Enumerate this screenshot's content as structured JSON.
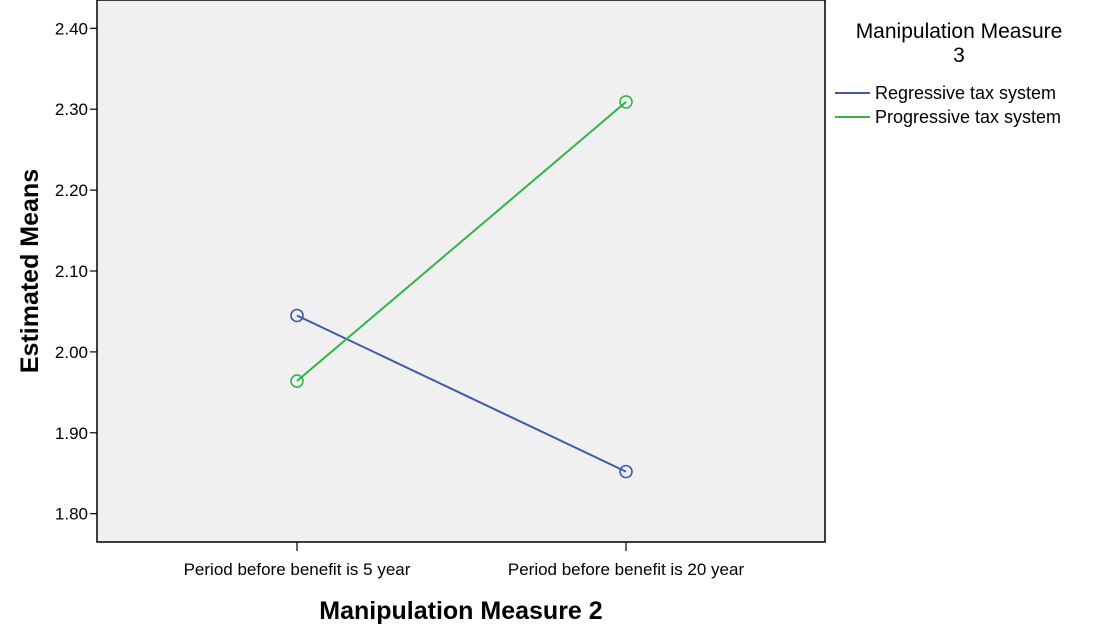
{
  "chart_data": {
    "type": "line",
    "xlabel": "Manipulation Measure 2",
    "ylabel": "Estimated Means",
    "categories": [
      "Period before benefit is 5 year",
      "Period before benefit is 20 year"
    ],
    "ylim": [
      1.765,
      2.435
    ],
    "yticks": [
      "1.80",
      "1.90",
      "2.00",
      "2.10",
      "2.20",
      "2.30",
      "2.40"
    ],
    "legend": {
      "title_line1": "Manipulation Measure",
      "title_line2": "3",
      "placement": "right"
    },
    "series": [
      {
        "name": "Regressive tax system",
        "color": "#3f5aa9",
        "values": [
          2.045,
          1.852
        ]
      },
      {
        "name": "Progressive tax system",
        "color": "#34b34a",
        "values": [
          1.964,
          2.309
        ]
      }
    ],
    "grid": false
  },
  "colors": {
    "plot_background": "#f0f0f0",
    "frame": "#000000"
  }
}
